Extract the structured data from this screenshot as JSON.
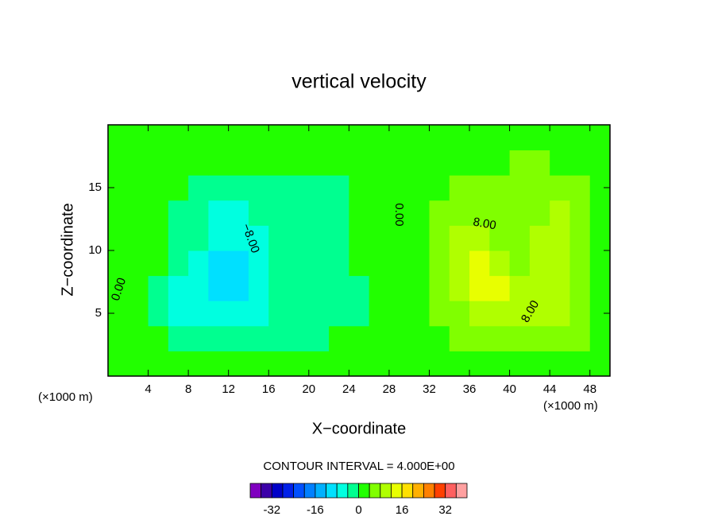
{
  "chart_data": {
    "type": "contour",
    "title": "vertical velocity",
    "x_label": "X−coordinate",
    "y_label": "Z−coordinate",
    "x_unit": "(×1000 m)",
    "y_unit": "(×1000 m)",
    "xlim": [
      0,
      50
    ],
    "ylim": [
      0,
      20
    ],
    "xticks": [
      4,
      8,
      12,
      16,
      20,
      24,
      28,
      32,
      36,
      40,
      44,
      48
    ],
    "yticks": [
      5,
      10,
      15
    ],
    "x": [
      1,
      3,
      5,
      7,
      9,
      11,
      13,
      15,
      17,
      19,
      21,
      23,
      25,
      27,
      29,
      31,
      33,
      35,
      37,
      39,
      41,
      43,
      45,
      47,
      49
    ],
    "z": [
      1,
      3,
      5,
      7,
      9,
      11,
      13,
      15,
      17,
      19
    ],
    "values": [
      [
        1,
        1,
        1,
        1,
        1,
        1,
        1,
        1,
        1,
        1,
        1,
        1,
        1,
        1,
        1,
        1,
        1,
        1,
        1,
        2,
        2,
        1,
        1,
        1,
        1
      ],
      [
        1,
        1,
        1,
        -2,
        -2,
        -2,
        -2,
        -2,
        -2,
        -2,
        -2,
        1,
        1,
        1,
        1,
        1,
        2,
        6,
        6,
        6,
        6,
        6,
        6,
        6,
        1
      ],
      [
        1,
        1,
        -2,
        -6,
        -6,
        -6,
        -6,
        -6,
        -2,
        -2,
        -2,
        -2,
        -2,
        1,
        1,
        1,
        6,
        6,
        10,
        10,
        10,
        10,
        10,
        6,
        2
      ],
      [
        1,
        1,
        -2,
        -6,
        -6,
        -10,
        -10,
        -6,
        -2,
        -2,
        -2,
        -2,
        -2,
        1,
        1,
        1,
        6,
        10,
        14,
        14,
        10,
        10,
        10,
        6,
        2
      ],
      [
        1,
        1,
        1,
        -2,
        -6,
        -10,
        -10,
        -6,
        -2,
        -2,
        -2,
        -2,
        1,
        1,
        1,
        1,
        6,
        10,
        14,
        10,
        6,
        10,
        10,
        6,
        2
      ],
      [
        1,
        1,
        1,
        -2,
        -2,
        -6,
        -6,
        -6,
        -2,
        -2,
        -2,
        -2,
        1,
        1,
        1,
        1,
        6,
        10,
        10,
        6,
        6,
        10,
        10,
        6,
        1
      ],
      [
        1,
        1,
        1,
        -2,
        -2,
        -6,
        -6,
        -2,
        -2,
        -2,
        -2,
        -2,
        1,
        1,
        1,
        1,
        6,
        6,
        6,
        6,
        6,
        6,
        10,
        6,
        1
      ],
      [
        1,
        1,
        1,
        1,
        -2,
        -2,
        -2,
        -2,
        -2,
        -2,
        -2,
        -2,
        1,
        1,
        1,
        1,
        1,
        6,
        6,
        6,
        6,
        6,
        6,
        6,
        1
      ],
      [
        1,
        1,
        1,
        1,
        1,
        1,
        1,
        1,
        1,
        1,
        1,
        1,
        1,
        1,
        1,
        1,
        1,
        1,
        1,
        1,
        6,
        6,
        1,
        1,
        1
      ],
      [
        1,
        1,
        1,
        1,
        1,
        1,
        1,
        1,
        1,
        1,
        1,
        1,
        1,
        1,
        1,
        1,
        1,
        1,
        1,
        1,
        1,
        1,
        1,
        1,
        1
      ]
    ],
    "contour_labels": [
      "0.00",
      "0.00",
      "−8.00",
      "8.00",
      "8.00"
    ],
    "contour_interval_text": "CONTOUR INTERVAL = 4.000E+00",
    "colorbar": {
      "levels": [
        -40,
        -36,
        -32,
        -28,
        -24,
        -20,
        -16,
        -12,
        -8,
        -4,
        0,
        4,
        8,
        12,
        16,
        20,
        24,
        28,
        32,
        36,
        40
      ],
      "colors": [
        "#8000c0",
        "#3c00a8",
        "#0000c8",
        "#0020e8",
        "#0050ff",
        "#0080ff",
        "#00b0ff",
        "#00e0ff",
        "#00ffe0",
        "#00ff90",
        "#22ff00",
        "#80ff00",
        "#b0ff00",
        "#e8ff00",
        "#ffe000",
        "#ffb000",
        "#ff8000",
        "#ff4000",
        "#ff6060",
        "#ffa0a0"
      ],
      "ticks": [
        -32,
        -16,
        0,
        16,
        32
      ]
    }
  }
}
